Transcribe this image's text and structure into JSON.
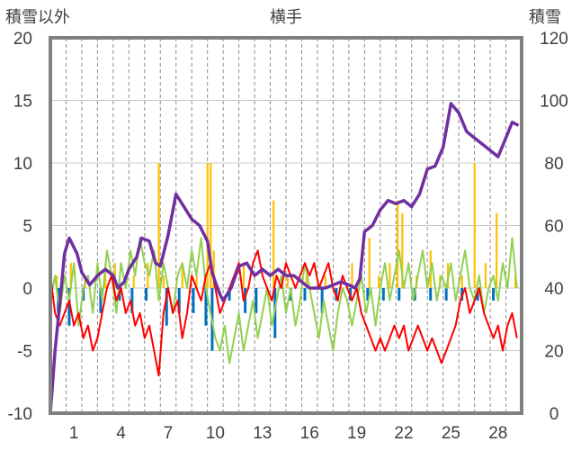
{
  "chart_data": {
    "type": "line",
    "title": "横手",
    "left_axis_label": "積雪以外",
    "right_axis_label": "積雪",
    "y_left": {
      "min": -10,
      "max": 20,
      "ticks": [
        "20",
        "15",
        "10",
        "5",
        "0",
        "-5",
        "-10"
      ]
    },
    "y_right": {
      "min": 0,
      "max": 120,
      "ticks": [
        "120",
        "100",
        "80",
        "60",
        "40",
        "20",
        "0"
      ]
    },
    "x_range": [
      0,
      30
    ],
    "x_tick_labels": [
      "1",
      "4",
      "7",
      "10",
      "13",
      "16",
      "19",
      "22",
      "25",
      "28"
    ],
    "x_tick_positions": [
      1.5,
      4.5,
      7.5,
      10.5,
      13.5,
      16.5,
      19.5,
      22.5,
      25.5,
      28.5
    ],
    "grid": {
      "vertical_dashed": true,
      "horizontal": true
    },
    "colors": {
      "snow_depth": "#7030a0",
      "temp_green": "#92d050",
      "temp_red": "#ff0000",
      "snowfall_orange": "#ffc000",
      "precip_blue": "#0070c0",
      "grid": "#c8c8c8",
      "frame": "#808080"
    },
    "series": [
      {
        "key": "snow_depth",
        "axis": "right",
        "x": [
          0,
          0.3,
          0.6,
          0.9,
          1.2,
          1.5,
          1.7,
          2.0,
          2.5,
          3.0,
          3.5,
          4.0,
          4.3,
          4.7,
          5.0,
          5.5,
          5.8,
          6.3,
          6.7,
          7.0,
          7.5,
          8.0,
          8.5,
          9.0,
          9.5,
          10.0,
          10.3,
          10.5,
          10.8,
          11.0,
          11.5,
          12.0,
          12.5,
          13.0,
          13.5,
          14.0,
          14.5,
          15.0,
          15.5,
          16.0,
          16.5,
          17.0,
          17.5,
          18.0,
          18.5,
          19.0,
          19.4,
          19.7,
          20.0,
          20.5,
          21.0,
          21.5,
          22.0,
          22.5,
          23.0,
          23.5,
          24.0,
          24.5,
          25.0,
          25.5,
          26.0,
          26.5,
          27.0,
          27.5,
          28.0,
          28.5,
          29.0,
          29.4,
          29.8
        ],
        "values": [
          0,
          20,
          35,
          51,
          56,
          53,
          51,
          45,
          41,
          44,
          46,
          44,
          40,
          42,
          46,
          50,
          56,
          55,
          48,
          47,
          57,
          70,
          66,
          62,
          60,
          55,
          45,
          42,
          38,
          36,
          40,
          47,
          48,
          44,
          46,
          44,
          46,
          44,
          44,
          42,
          40,
          40,
          40,
          41,
          42,
          41,
          40,
          43,
          58,
          60,
          65,
          68,
          67,
          68,
          66,
          70,
          78,
          79,
          85,
          99,
          96,
          90,
          88,
          86,
          84,
          82,
          88,
          93,
          92
        ]
      },
      {
        "key": "temp_green",
        "axis": "left",
        "x": [
          0,
          0.3,
          0.6,
          0.9,
          1.2,
          1.5,
          1.8,
          2.1,
          2.4,
          2.7,
          3.0,
          3.3,
          3.6,
          3.9,
          4.2,
          4.5,
          4.8,
          5.1,
          5.4,
          5.7,
          6.0,
          6.3,
          6.6,
          6.9,
          7.2,
          7.5,
          7.8,
          8.1,
          8.4,
          8.7,
          9.0,
          9.3,
          9.6,
          9.9,
          10.2,
          10.5,
          10.8,
          11.1,
          11.4,
          11.7,
          12.0,
          12.3,
          12.6,
          12.9,
          13.2,
          13.5,
          13.8,
          14.1,
          14.4,
          14.7,
          15.0,
          15.3,
          15.6,
          15.9,
          16.2,
          16.5,
          16.8,
          17.1,
          17.4,
          17.7,
          18.0,
          18.3,
          18.6,
          18.9,
          19.2,
          19.5,
          19.8,
          20.1,
          20.4,
          20.7,
          21.0,
          21.3,
          21.6,
          21.9,
          22.2,
          22.5,
          22.8,
          23.1,
          23.4,
          23.7,
          24.0,
          24.3,
          24.6,
          24.9,
          25.2,
          25.5,
          25.8,
          26.1,
          26.4,
          26.7,
          27.0,
          27.3,
          27.6,
          27.9,
          28.2,
          28.5,
          28.8,
          29.1,
          29.4,
          29.7
        ],
        "values": [
          -1,
          1,
          -2,
          1,
          -1,
          2,
          -3,
          0,
          1,
          -2,
          2,
          -1,
          3,
          1,
          -2,
          2,
          0,
          3,
          1,
          4,
          2,
          1,
          3,
          -1,
          2,
          0,
          -2,
          1,
          2,
          0,
          3,
          1,
          4,
          0,
          -2,
          -4,
          -5,
          -3,
          -6,
          -4,
          -2,
          -5,
          -3,
          -1,
          -4,
          -2,
          0,
          -3,
          -1,
          1,
          -2,
          0,
          -3,
          -1,
          2,
          0,
          -2,
          -4,
          -1,
          -3,
          -5,
          -2,
          0,
          -1,
          -3,
          -1,
          1,
          -2,
          0,
          -3,
          0,
          2,
          -1,
          1,
          3,
          0,
          2,
          -1,
          1,
          3,
          0,
          2,
          -1,
          1,
          0,
          2,
          -1,
          1,
          3,
          0,
          -1,
          1,
          -2,
          0,
          1,
          -1,
          2,
          0,
          4,
          0
        ]
      },
      {
        "key": "temp_red",
        "axis": "left",
        "x": [
          0,
          0.3,
          0.6,
          0.9,
          1.2,
          1.5,
          1.8,
          2.1,
          2.4,
          2.7,
          3.0,
          3.3,
          3.6,
          3.9,
          4.2,
          4.5,
          4.8,
          5.1,
          5.4,
          5.7,
          6.0,
          6.3,
          6.6,
          6.9,
          7.2,
          7.5,
          7.8,
          8.1,
          8.4,
          8.7,
          9.0,
          9.3,
          9.6,
          9.9,
          10.2,
          10.5,
          10.8,
          11.1,
          11.4,
          11.7,
          12.0,
          12.3,
          12.6,
          12.9,
          13.2,
          13.5,
          13.8,
          14.1,
          14.4,
          14.7,
          15.0,
          15.3,
          15.6,
          15.9,
          16.2,
          16.5,
          16.8,
          17.1,
          17.4,
          17.7,
          18.0,
          18.3,
          18.6,
          18.9,
          19.2,
          19.5,
          19.8,
          20.1,
          20.4,
          20.7,
          21.0,
          21.3,
          21.6,
          21.9,
          22.2,
          22.5,
          22.8,
          23.1,
          23.4,
          23.7,
          24.0,
          24.3,
          24.6,
          24.9,
          25.2,
          25.5,
          25.8,
          26.1,
          26.4,
          26.7,
          27.0,
          27.3,
          27.6,
          27.9,
          28.2,
          28.5,
          28.8,
          29.1,
          29.4,
          29.7
        ],
        "values": [
          1,
          -2,
          -3,
          -2,
          -1,
          -3,
          -2,
          -4,
          -3,
          -5,
          -4,
          -2,
          0,
          1,
          -1,
          0,
          -2,
          -1,
          -3,
          -2,
          -4,
          -3,
          -5,
          -7,
          -2,
          0,
          -2,
          -1,
          -4,
          -2,
          1,
          0,
          -1,
          1,
          2,
          0,
          -2,
          -1,
          0,
          1,
          2,
          -1,
          0,
          2,
          3,
          1,
          0,
          -1,
          1,
          0,
          2,
          1,
          0,
          1,
          2,
          1,
          2,
          0,
          1,
          2,
          0,
          -1,
          1,
          0,
          -1,
          0,
          -2,
          -3,
          -4,
          -5,
          -4,
          -5,
          -4,
          -3,
          -4,
          -3,
          -5,
          -4,
          -3,
          -4,
          -5,
          -4,
          -5,
          -6,
          -5,
          -4,
          -3,
          -1,
          0,
          -2,
          -1,
          0,
          -2,
          -3,
          -4,
          -3,
          -5,
          -3,
          -2,
          -4
        ]
      }
    ],
    "bars_up": {
      "key": "snowfall_orange",
      "axis": "left",
      "x": [
        0.4,
        1.3,
        2.2,
        3.5,
        4.1,
        5.3,
        6.2,
        6.9,
        7.2,
        8.4,
        9.3,
        10.0,
        10.2,
        10.4,
        12.3,
        14.2,
        15.1,
        16.3,
        17.5,
        19.2,
        20.3,
        20.9,
        21.6,
        22.1,
        22.4,
        23.3,
        24.2,
        24.8,
        25.3,
        26.2,
        27.0,
        27.7,
        28.4,
        29.6
      ],
      "values": [
        1,
        2,
        1,
        2,
        2,
        1,
        2,
        10,
        1,
        2,
        1,
        10,
        10,
        3,
        2,
        7,
        1,
        1,
        1,
        2,
        4,
        1,
        2,
        7,
        6,
        1,
        3,
        1,
        2,
        1,
        10,
        2,
        6,
        1
      ]
    },
    "bars_down": {
      "key": "precip_blue",
      "axis": "left",
      "x": [
        0.5,
        1.2,
        2.1,
        3.2,
        4.4,
        5.2,
        6.1,
        7.4,
        8.2,
        9.1,
        9.9,
        10.3,
        11.4,
        12.4,
        13.1,
        14.3,
        15.3,
        16.2,
        17.3,
        18.2,
        19.1,
        20.2,
        21.2,
        22.2,
        23.2,
        24.2,
        25.2,
        26.2,
        27.2,
        28.2
      ],
      "values": [
        -2,
        -3,
        -1,
        -2,
        -1,
        -2,
        -1,
        -3,
        -2,
        -2,
        -3,
        -5,
        -1,
        -2,
        -2,
        -4,
        -1,
        -1,
        -2,
        -1,
        -1,
        -1,
        -1,
        -1,
        -1,
        -1,
        -1,
        -1,
        -1,
        -1
      ]
    }
  }
}
